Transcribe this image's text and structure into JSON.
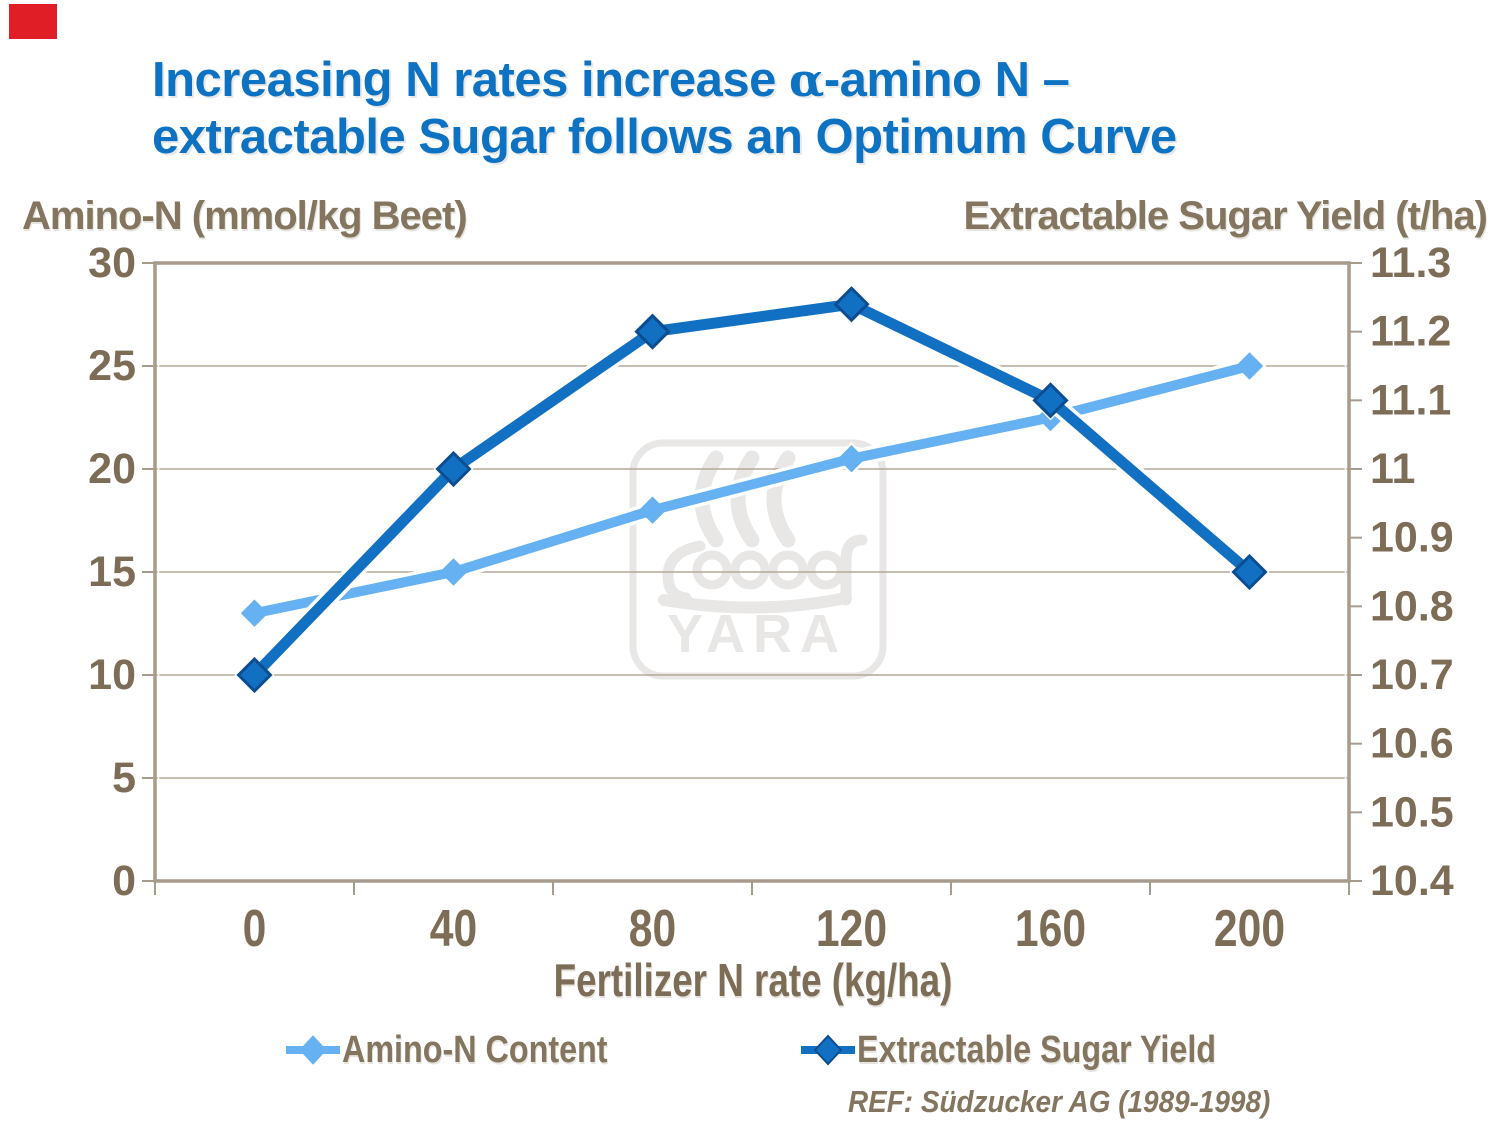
{
  "title": {
    "line1_prefix": "Increasing N rates increase ",
    "alpha": "α",
    "line1_suffix": "-amino N –",
    "line2": "extractable Sugar follows an Optimum Curve"
  },
  "axes": {
    "left_title": "Amino-N (mmol/kg Beet)",
    "right_title": "Extractable Sugar Yield (t/ha)",
    "x_title": "Fertilizer N rate (kg/ha)"
  },
  "chart_data": {
    "type": "line",
    "x": [
      0,
      40,
      80,
      120,
      160,
      200
    ],
    "x_tick_labels": [
      "0",
      "40",
      "80",
      "120",
      "160",
      "200"
    ],
    "xlabel": "Fertilizer N rate (kg/ha)",
    "left_axis": {
      "label": "Amino-N (mmol/kg Beet)",
      "range": [
        0,
        30
      ],
      "ticks": [
        0,
        5,
        10,
        15,
        20,
        25,
        30
      ],
      "tick_labels": [
        "0",
        "5",
        "10",
        "15",
        "20",
        "25",
        "30"
      ],
      "gridlines": [
        5,
        10,
        15,
        20,
        25
      ]
    },
    "right_axis": {
      "label": "Extractable Sugar Yield (t/ha)",
      "range": [
        10.4,
        11.3
      ],
      "ticks": [
        10.4,
        10.5,
        10.6,
        10.7,
        10.8,
        10.9,
        11,
        11.1,
        11.2,
        11.3
      ],
      "tick_labels": [
        "10.4",
        "10.5",
        "10.6",
        "10.7",
        "10.8",
        "10.9",
        "11",
        "11.1",
        "11.2",
        "11.3"
      ]
    },
    "series": [
      {
        "name": "Amino-N Content",
        "axis": "left",
        "color": "#66B1F1",
        "marker_border": "#66B1F1",
        "values": [
          13,
          15,
          18,
          20.5,
          22.5,
          25
        ]
      },
      {
        "name": "Extractable Sugar Yield",
        "axis": "right",
        "color": "#1270C2",
        "marker_border": "#0C4D92",
        "values": [
          10.7,
          11.0,
          11.2,
          11.24,
          11.1,
          10.85
        ]
      }
    ],
    "grid": "horizontal",
    "legend_position": "bottom"
  },
  "legend": {
    "items": [
      {
        "label": "Amino-N Content"
      },
      {
        "label": "Extractable Sugar Yield"
      }
    ]
  },
  "ref": "REF: Südzucker AG (1989-1998)",
  "watermark": {
    "text": "YARA"
  },
  "colors": {
    "title_blue": "#0D72C2",
    "text_brown": "#84755F",
    "tick_brown": "#7D6D56",
    "gridline": "#B3A897",
    "border": "#A79C8B",
    "watermark_gray": "#E8E7E6",
    "red_marker": "#E01E26",
    "series_light_blue": "#66B1F1",
    "series_dark_blue": "#1270C2"
  }
}
